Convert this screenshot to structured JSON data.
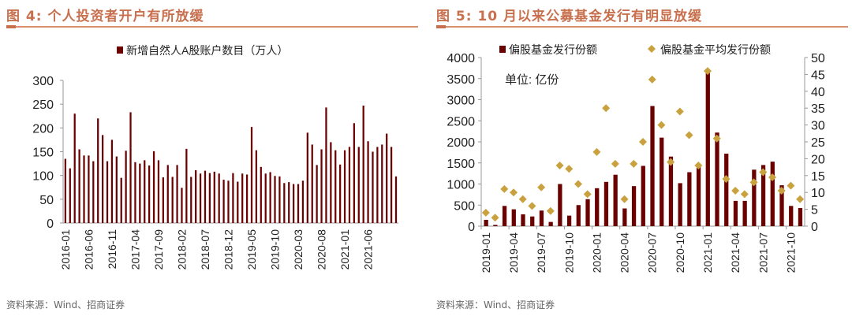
{
  "left": {
    "title": "图 4:  个人投资者开户有所放缓",
    "source": "资料来源：Wind、招商证券"
  },
  "right": {
    "title": "图 5:  10 月以来公募基金发行有明显放缓",
    "source": "资料来源：Wind、招商证券",
    "unit_note": "单位:  亿份"
  },
  "colors": {
    "bar": "#6B0000",
    "diamond": "#C9A23F",
    "title": "#C8704E"
  },
  "chart_data": [
    {
      "type": "bar",
      "legend": [
        "新增自然人A股账户数目（万人）"
      ],
      "legend_position": "top",
      "ylim": [
        0,
        300
      ],
      "yticks": [
        0,
        50,
        100,
        150,
        200,
        250,
        300
      ],
      "xtick_labels": [
        "2016-01",
        "2016-06",
        "2016-11",
        "2017-04",
        "2017-09",
        "2018-02",
        "2018-07",
        "2018-12",
        "2019-05",
        "2019-10",
        "2020-03",
        "2020-08",
        "2021-01",
        "2021-06"
      ],
      "start": "2016-01",
      "series": [
        {
          "name": "新增自然人A股账户数目（万人）",
          "values": [
            135,
            115,
            230,
            155,
            142,
            142,
            130,
            220,
            185,
            130,
            175,
            140,
            95,
            152,
            233,
            128,
            125,
            132,
            121,
            151,
            132,
            96,
            122,
            97,
            122,
            74,
            156,
            97,
            111,
            104,
            110,
            105,
            108,
            104,
            91,
            89,
            105,
            87,
            104,
            102,
            202,
            153,
            118,
            104,
            107,
            99,
            98,
            84,
            86,
            82,
            82,
            89,
            190,
            165,
            122,
            155,
            243,
            170,
            153,
            123,
            153,
            160,
            210,
            160,
            247,
            172,
            150,
            160,
            165,
            188,
            160,
            98
          ]
        }
      ]
    },
    {
      "type": "bar+scatter",
      "legend": [
        "偏股基金发行份额",
        "偏股基金平均发行份额"
      ],
      "legend_position": "top",
      "ylim": [
        0,
        4000
      ],
      "yticks": [
        0,
        500,
        1000,
        1500,
        2000,
        2500,
        3000,
        3500,
        4000
      ],
      "y2lim": [
        0,
        50
      ],
      "y2ticks": [
        0,
        5,
        10,
        15,
        20,
        25,
        30,
        35,
        40,
        45,
        50
      ],
      "xtick_labels": [
        "2019-01",
        "2019-04",
        "2019-07",
        "2019-10",
        "2020-01",
        "2020-04",
        "2020-07",
        "2020-10",
        "2021-01",
        "2021-04",
        "2021-07",
        "2021-10"
      ],
      "start": "2019-01",
      "series": [
        {
          "name": "偏股基金发行份额",
          "axis": "left",
          "values": [
            150,
            30,
            480,
            400,
            280,
            230,
            370,
            100,
            1000,
            250,
            500,
            640,
            900,
            1050,
            1220,
            420,
            950,
            1430,
            2850,
            2100,
            1650,
            1020,
            1280,
            1480,
            3650,
            2220,
            1720,
            600,
            600,
            1340,
            1450,
            1530,
            970,
            480,
            430
          ]
        },
        {
          "name": "偏股基金平均发行份额",
          "axis": "right",
          "values": [
            4,
            2.5,
            11,
            10,
            8,
            6,
            11.5,
            4.5,
            18,
            17,
            12.5,
            9.5,
            22,
            35,
            18.5,
            8,
            18.5,
            25,
            43.5,
            30,
            19,
            34,
            27,
            18,
            46,
            26,
            14,
            10.5,
            9.5,
            13,
            16,
            14.5,
            10.5,
            12,
            8
          ]
        }
      ]
    }
  ]
}
